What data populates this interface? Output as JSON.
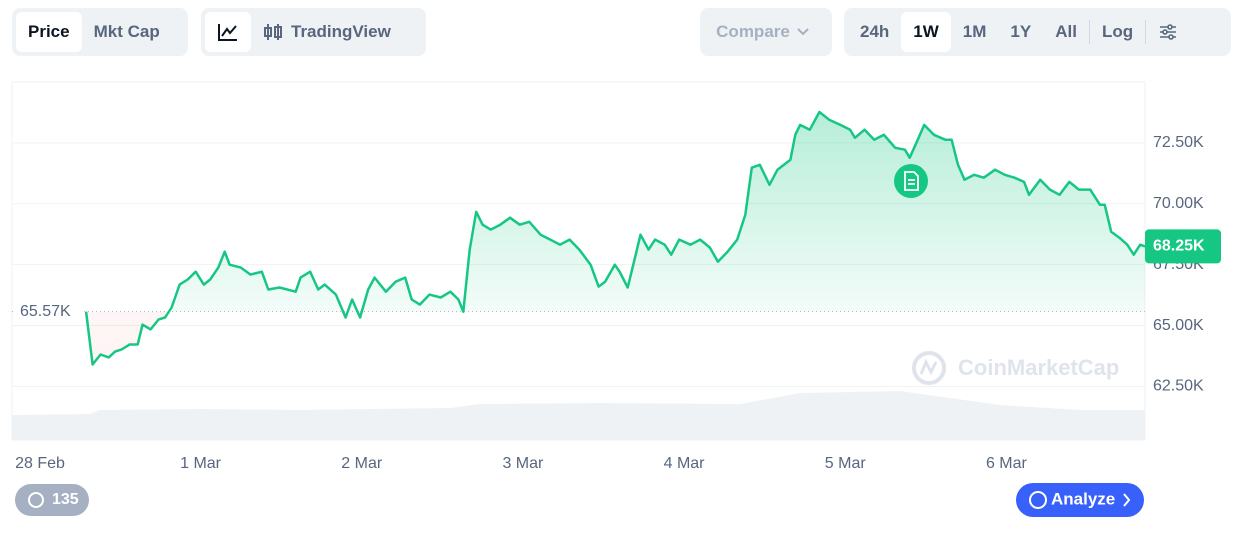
{
  "toolbar": {
    "metric_tabs": [
      "Price",
      "Mkt Cap"
    ],
    "active_metric": "Price",
    "view_tabs": [
      "TradingView"
    ],
    "compare": "Compare",
    "range_tabs": [
      "24h",
      "1W",
      "1M",
      "1Y",
      "All"
    ],
    "active_range": "1W",
    "log": "Log"
  },
  "chart_data": {
    "type": "line",
    "x": [
      0.29,
      0.33,
      0.38,
      0.43,
      0.47,
      0.51,
      0.56,
      0.61,
      0.64,
      0.69,
      0.74,
      0.78,
      0.82,
      0.87,
      0.92,
      0.97,
      1.02,
      1.06,
      1.11,
      1.15,
      1.18,
      1.25,
      1.31,
      1.38,
      1.42,
      1.49,
      1.59,
      1.62,
      1.68,
      1.73,
      1.77,
      1.84,
      1.9,
      1.94,
      1.99,
      2.04,
      2.08,
      2.15,
      2.21,
      2.27,
      2.31,
      2.36,
      2.42,
      2.49,
      2.55,
      2.6,
      2.63,
      2.67,
      2.71,
      2.75,
      2.8,
      2.86,
      2.92,
      2.98,
      3.04,
      3.11,
      3.17,
      3.23,
      3.29,
      3.35,
      3.42,
      3.47,
      3.51,
      3.57,
      3.6,
      3.65,
      3.7,
      3.73,
      3.78,
      3.82,
      3.88,
      3.92,
      3.97,
      4.04,
      4.1,
      4.16,
      4.21,
      4.27,
      4.33,
      4.38,
      4.42,
      4.47,
      4.53,
      4.58,
      4.66,
      4.69,
      4.72,
      4.78,
      4.84,
      4.9,
      4.97,
      5.03,
      5.06,
      5.12,
      5.18,
      5.24,
      5.31,
      5.37,
      5.4,
      5.45,
      5.49,
      5.55,
      5.62,
      5.66,
      5.7,
      5.74,
      5.8,
      5.86,
      5.93,
      5.99,
      6.05,
      6.11,
      6.14,
      6.21,
      6.27,
      6.33,
      6.39,
      6.45,
      6.52,
      6.58,
      6.61,
      6.65,
      6.7,
      6.75,
      6.79,
      6.83,
      6.86
    ],
    "series": [
      {
        "name": "Price",
        "color": "#16c784",
        "down_color": "#ea3943",
        "values": [
          65570,
          63400,
          63810,
          63690,
          63930,
          64020,
          64220,
          64220,
          65040,
          64840,
          65250,
          65330,
          65740,
          66680,
          66890,
          67210,
          66680,
          66890,
          67380,
          68030,
          67500,
          67380,
          67090,
          67210,
          66480,
          66560,
          66390,
          66970,
          67210,
          66480,
          66680,
          66270,
          65330,
          66070,
          65330,
          66480,
          66970,
          66390,
          66800,
          66970,
          66070,
          65860,
          66270,
          66150,
          66390,
          66070,
          65570,
          68120,
          69670,
          69140,
          68940,
          69140,
          69430,
          69140,
          69260,
          68730,
          68530,
          68320,
          68530,
          68120,
          67500,
          66600,
          66800,
          67500,
          67210,
          66560,
          67910,
          68730,
          68120,
          68530,
          68320,
          67910,
          68530,
          68320,
          68530,
          68200,
          67620,
          68030,
          68530,
          69550,
          71480,
          71600,
          70780,
          71400,
          71810,
          72830,
          73240,
          73040,
          73770,
          73450,
          73240,
          73040,
          72710,
          73040,
          72630,
          72830,
          72300,
          72220,
          71890,
          72630,
          73240,
          72830,
          72630,
          72630,
          71600,
          70990,
          71190,
          71070,
          71400,
          71190,
          71070,
          70900,
          70370,
          70990,
          70580,
          70370,
          70900,
          70580,
          70580,
          69960,
          69960,
          68850,
          68610,
          68320,
          67910,
          68320,
          68250
        ]
      }
    ],
    "baseline": {
      "value": 65570,
      "label": "65.57K"
    },
    "current_price": {
      "value": 68250,
      "label": "68.25K"
    },
    "xlim": [
      -0.17,
      6.86
    ],
    "xticks": [
      {
        "value": 0,
        "label": "28 Feb"
      },
      {
        "value": 1,
        "label": "1 Mar"
      },
      {
        "value": 2,
        "label": "2 Mar"
      },
      {
        "value": 3,
        "label": "3 Mar"
      },
      {
        "value": 4,
        "label": "4 Mar"
      },
      {
        "value": 5,
        "label": "5 Mar"
      },
      {
        "value": 6,
        "label": "6 Mar"
      }
    ],
    "ylim": [
      60300,
      75000
    ],
    "yticks": [
      {
        "value": 62500,
        "label": "62.50K"
      },
      {
        "value": 65000,
        "label": "65.00K"
      },
      {
        "value": 67500,
        "label": "67.50K"
      },
      {
        "value": 70000,
        "label": "70.00K"
      },
      {
        "value": 72500,
        "label": "72.50K"
      }
    ],
    "grid": true,
    "watermark": "CoinMarketCap"
  },
  "footer": {
    "history_count": "135",
    "analyze": "Analyze"
  }
}
